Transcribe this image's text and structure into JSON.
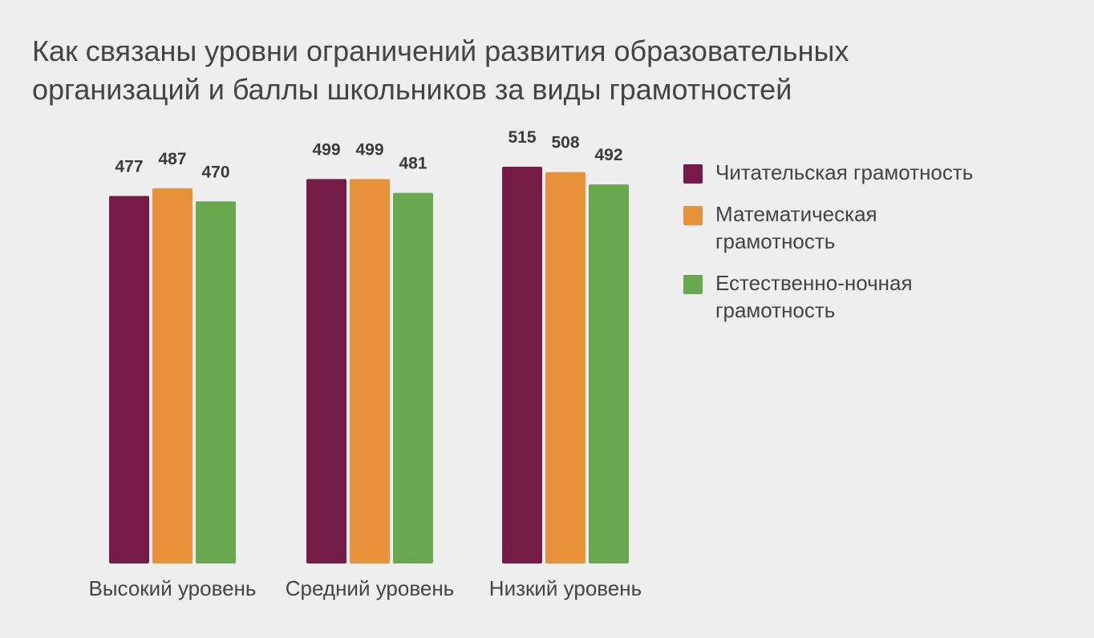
{
  "title_lines": [
    "Как связаны уровни ограничений развития образовательных",
    "организаций и баллы школьников за виды грамотностей"
  ],
  "legend": [
    {
      "label": "Читательская грамотность",
      "color": "#751b45"
    },
    {
      "label": "Математическая\nграмотность",
      "color": "#e8923a"
    },
    {
      "label": "Естественно-ночная\nграмотность",
      "color": "#68a84e"
    }
  ],
  "chart_data": {
    "type": "bar",
    "title": "Как связаны уровни ограничений развития образовательных организаций и баллы школьников за виды грамотностей",
    "categories": [
      "Высокий уровень",
      "Средний уровень",
      "Низкий уровень"
    ],
    "series": [
      {
        "name": "Читательская грамотность",
        "color": "#751b45",
        "values": [
          477,
          499,
          515
        ]
      },
      {
        "name": "Математическая грамотность",
        "color": "#e8923a",
        "values": [
          487,
          499,
          508
        ]
      },
      {
        "name": "Естественно-ночная грамотность",
        "color": "#68a84e",
        "values": [
          470,
          481,
          492
        ]
      }
    ],
    "xlabel": "",
    "ylabel": "",
    "ylim": [
      0,
      515
    ],
    "grid": false,
    "legend_position": "right",
    "data_labels": true
  }
}
